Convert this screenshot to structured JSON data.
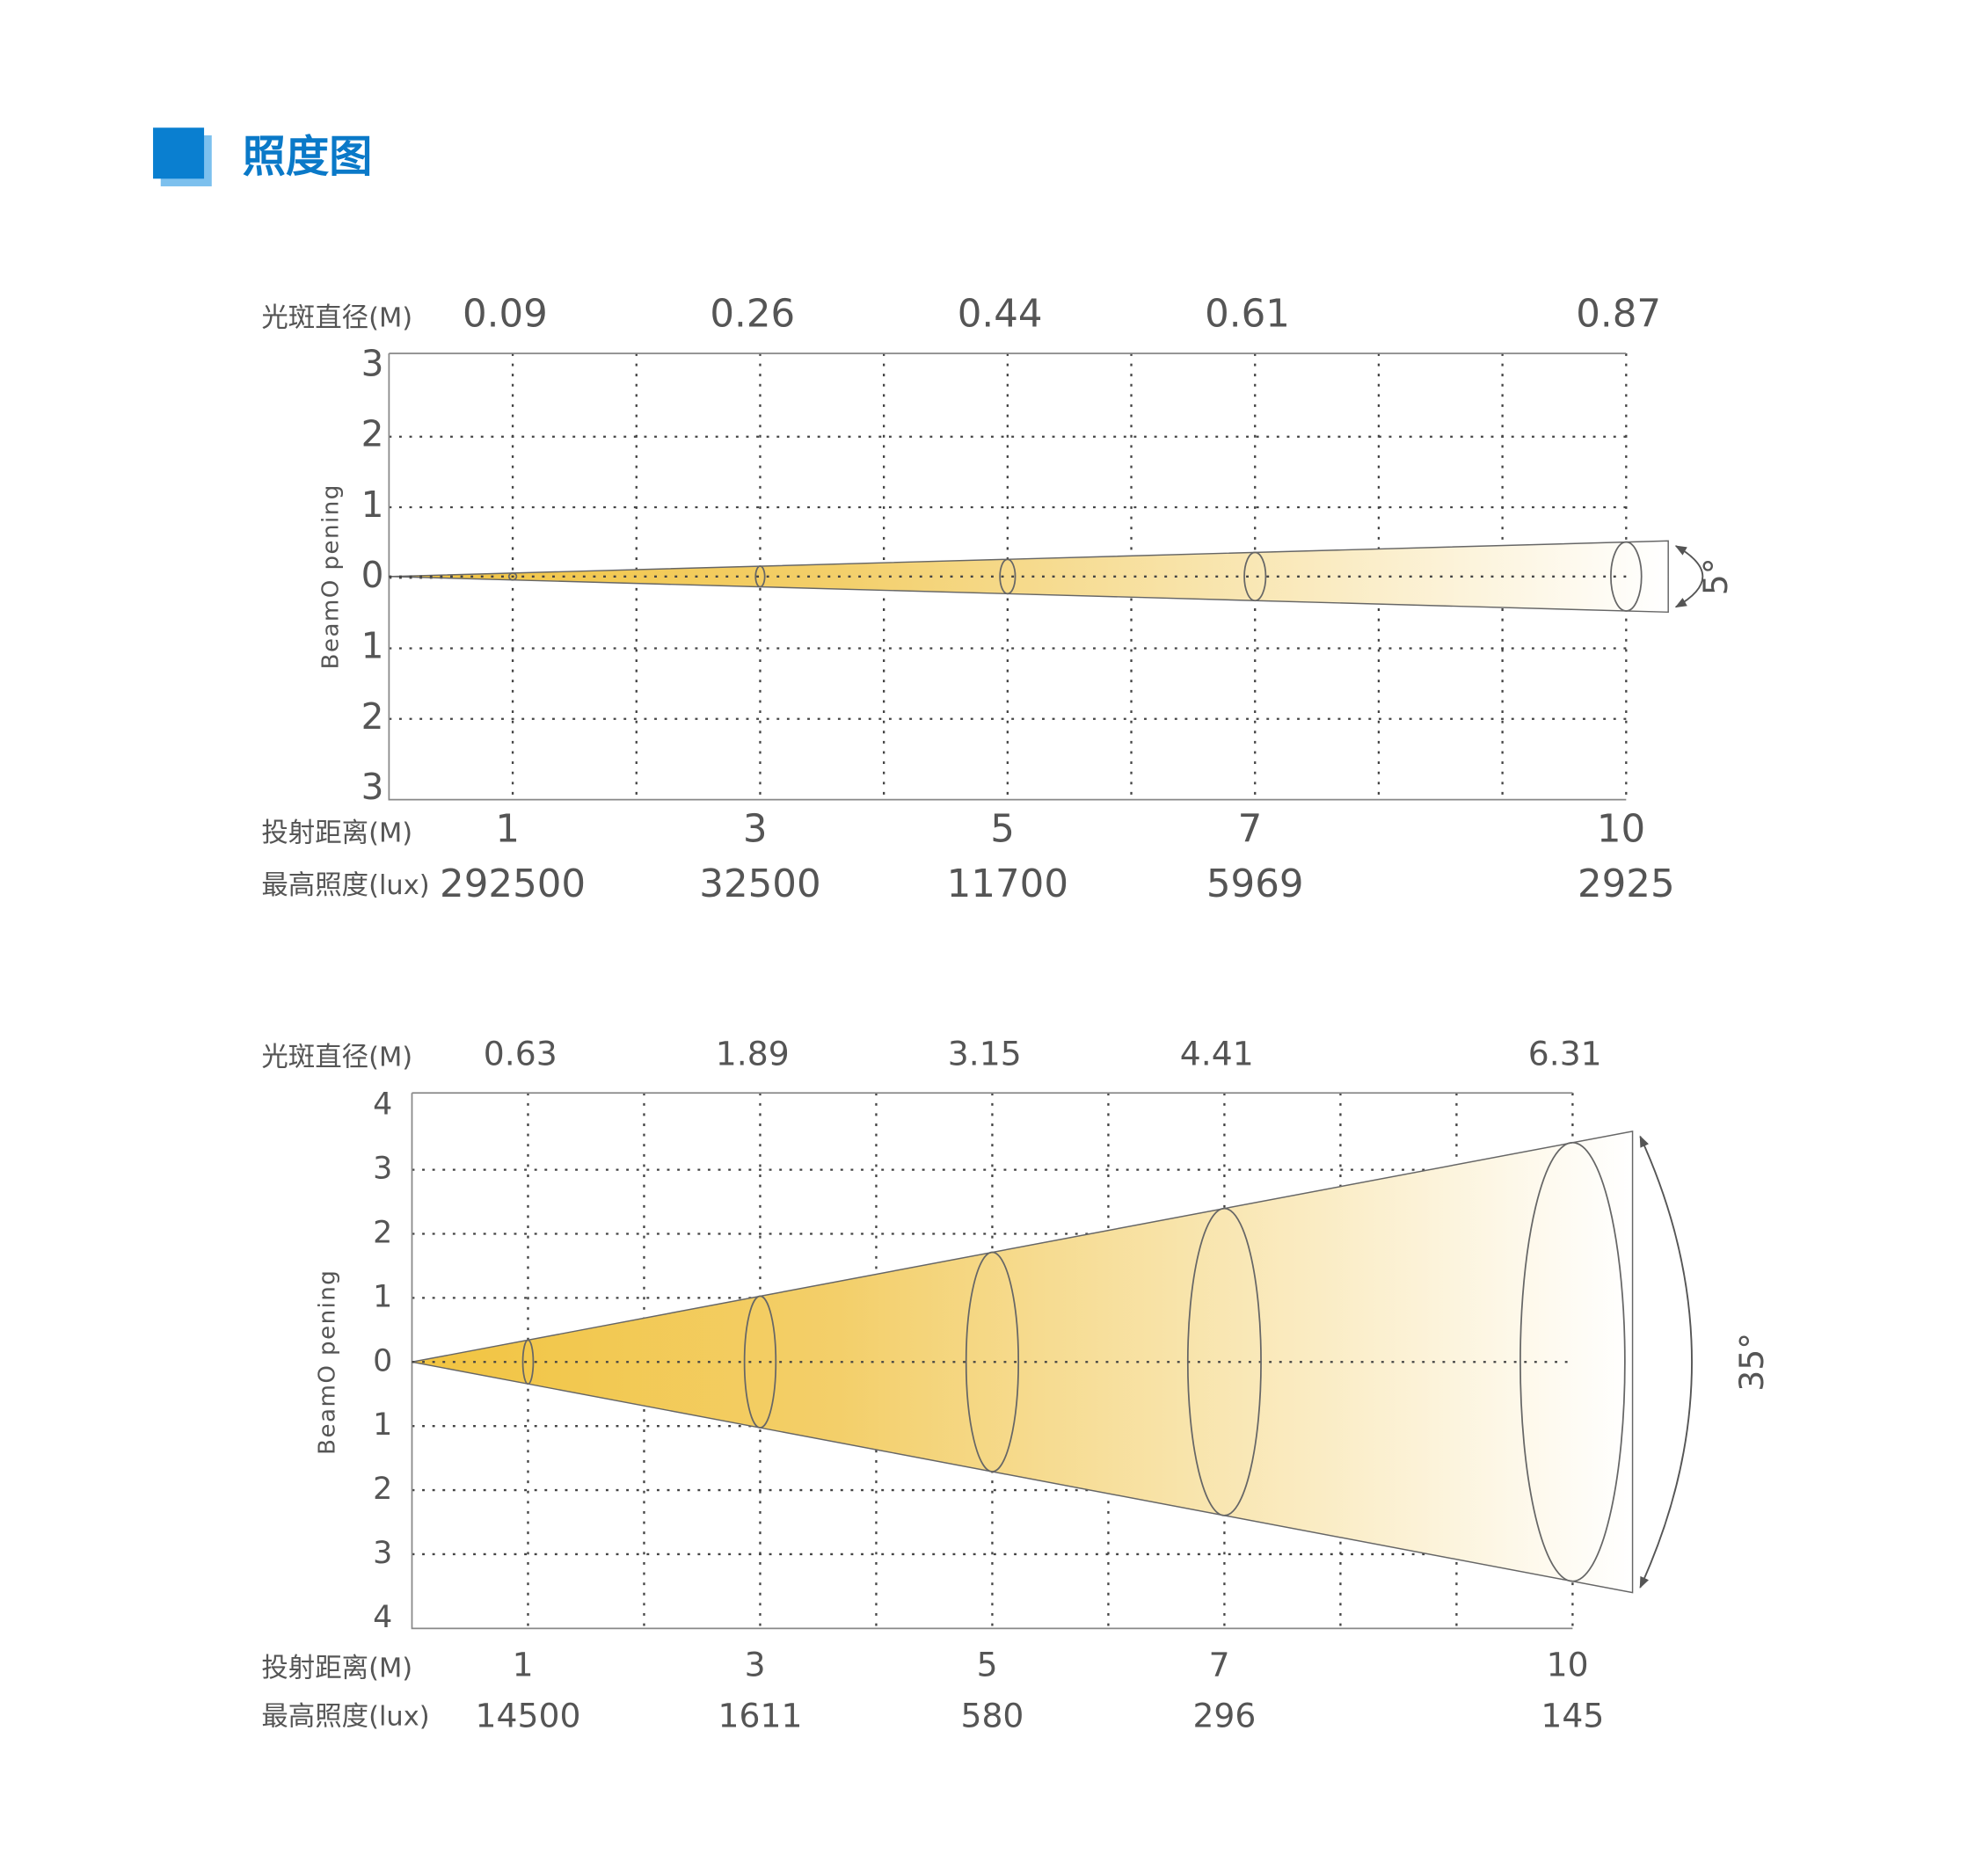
{
  "header": {
    "title": "照度图"
  },
  "diagrams": [
    {
      "diameter_label": "光斑直径(M)",
      "diameters": [
        0.09,
        0.26,
        0.44,
        0.61,
        0.87
      ],
      "y_axis_label": "BeamO pening",
      "y_ticks": [
        3,
        2,
        1,
        0,
        1,
        2,
        3
      ],
      "distance_label": "投射距离(M)",
      "distances": [
        1,
        3,
        5,
        7,
        10
      ],
      "lux_label": "最高照度(lux)",
      "lux": [
        292500,
        32500,
        11700,
        5969,
        2925
      ],
      "angle": "5°"
    },
    {
      "diameter_label": "光斑直径(M)",
      "diameters": [
        0.63,
        1.89,
        3.15,
        4.41,
        6.31
      ],
      "y_axis_label": "BeamO pening",
      "y_ticks": [
        4,
        3,
        2,
        1,
        0,
        1,
        2,
        3,
        4
      ],
      "distance_label": "投射距离(M)",
      "distances": [
        1,
        3,
        5,
        7,
        10
      ],
      "lux_label": "最高照度(lux)",
      "lux": [
        14500,
        1611,
        580,
        296,
        145
      ],
      "angle": "35°"
    }
  ]
}
